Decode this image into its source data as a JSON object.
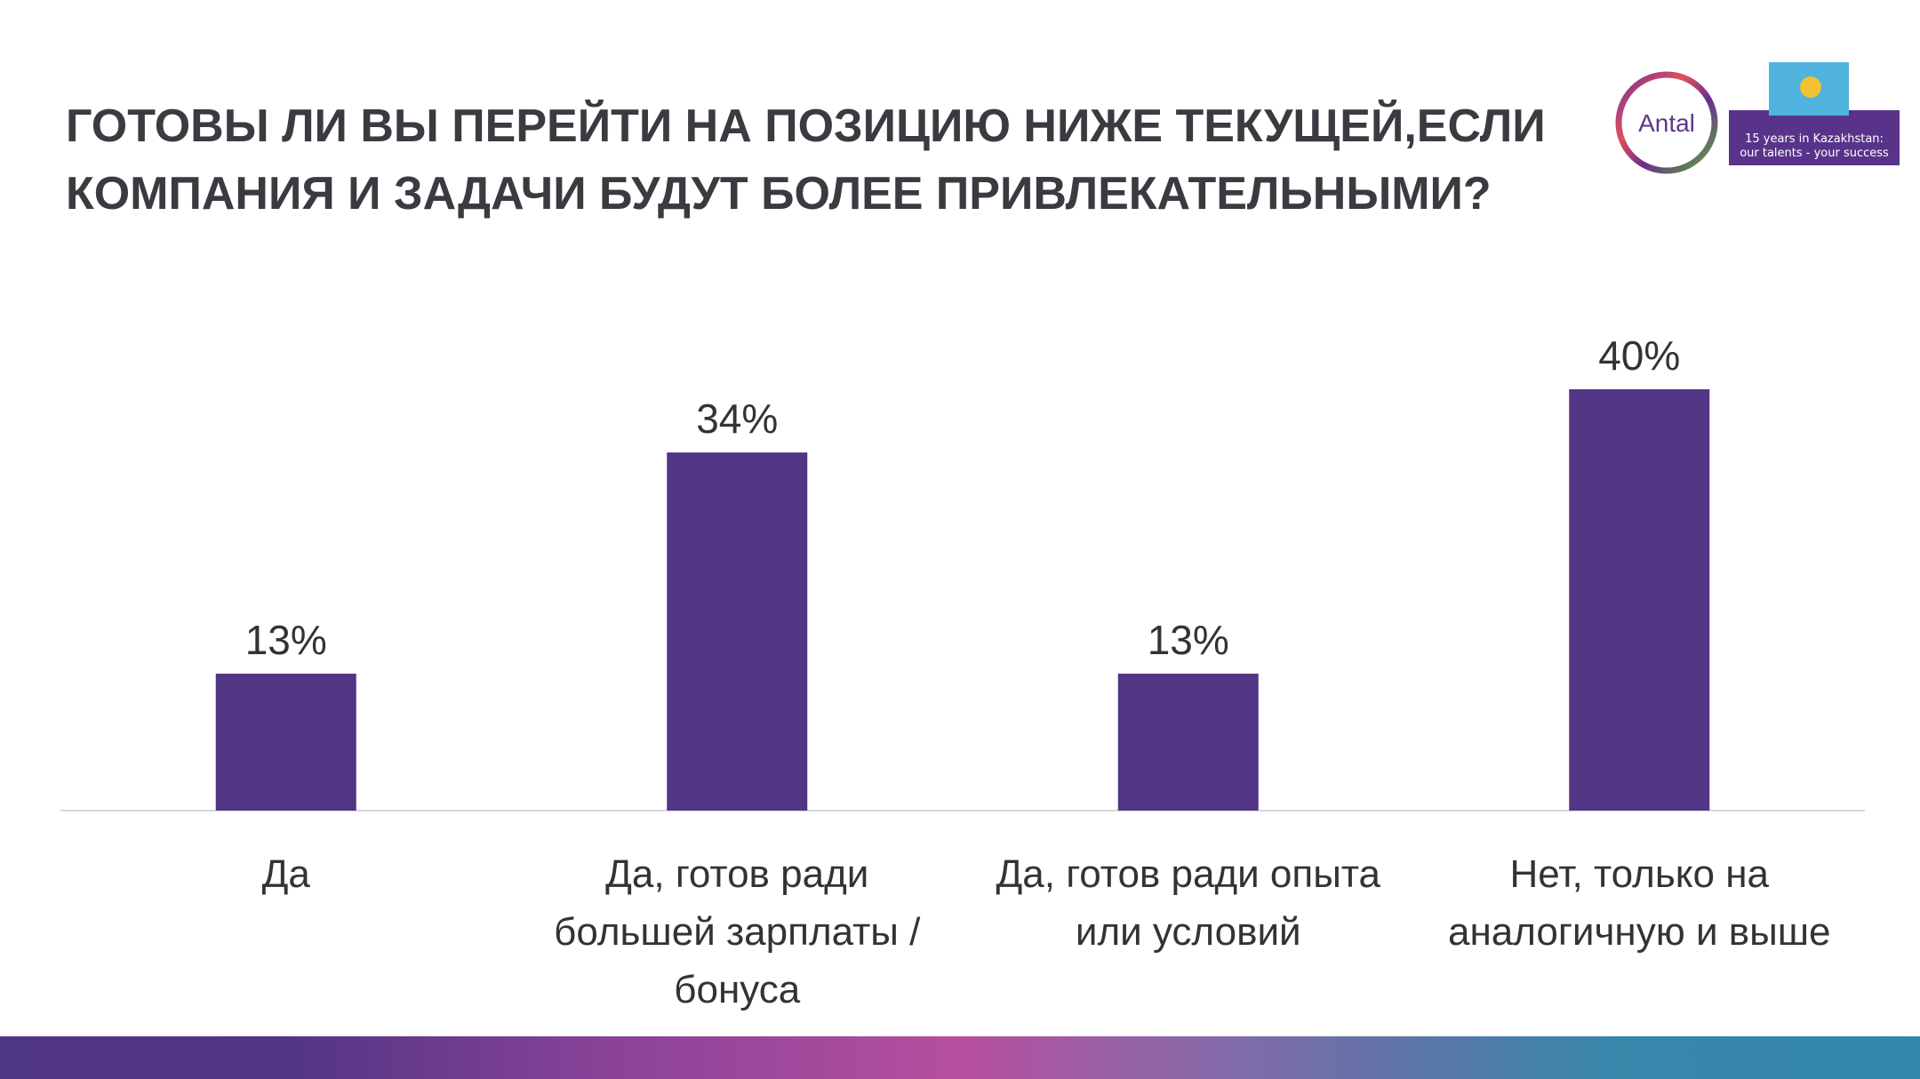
{
  "title": "ГОТОВЫ ЛИ ВЫ ПЕРЕЙТИ НА ПОЗИЦИЮ НИЖЕ ТЕКУЩЕЙ,ЕСЛИ КОМПАНИЯ И ЗАДАЧИ БУДУТ БОЛЕЕ ПРИВЛЕКАТЕЛЬНЫМИ?",
  "logo": {
    "brand": "Antal",
    "tagline_line1": "15 years in Kazakhstan:",
    "tagline_line2": "our talents - your success"
  },
  "colors": {
    "bar": "#523584",
    "title": "#3a3a40",
    "axis": "#d9d9d9"
  },
  "chart_data": {
    "type": "bar",
    "categories": [
      [
        "Да"
      ],
      [
        "Да, готов ради",
        "большей зарплаты /",
        "бонуса"
      ],
      [
        "Да, готов ради опыта",
        "или условий"
      ],
      [
        "Нет, только на",
        "аналогичную и выше"
      ]
    ],
    "values": [
      13,
      34,
      13,
      40
    ],
    "data_labels": [
      "13%",
      "34%",
      "13%",
      "40%"
    ],
    "ylim": [
      0,
      40
    ],
    "grid": false,
    "legend": "none"
  }
}
